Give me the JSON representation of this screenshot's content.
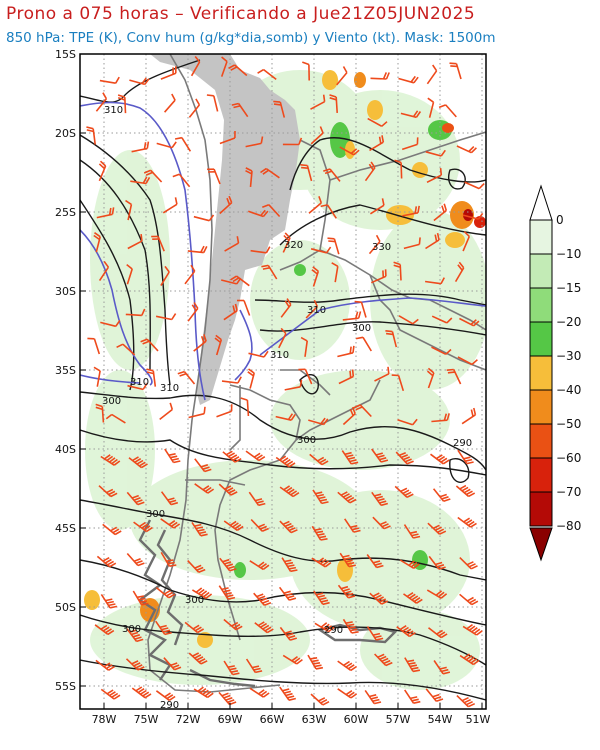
{
  "title": "Prono a 075 horas – Verificando a Jue21Z05JUN2025",
  "subtitle": "850 hPa: TPE (K), Conv hum (g/kg*dia,somb) y Viento (kt). Mask: 1500m",
  "axes": {
    "lat_labels": [
      "15S",
      "20S",
      "25S",
      "30S",
      "35S",
      "40S",
      "45S",
      "50S",
      "55S"
    ],
    "lon_labels": [
      "78W",
      "75W",
      "72W",
      "69W",
      "66W",
      "63W",
      "60W",
      "57W",
      "54W",
      "51W"
    ]
  },
  "contour_labels": {
    "black": [
      "310",
      "320",
      "330",
      "310",
      "300",
      "310",
      "300",
      "300",
      "290",
      "300",
      "300",
      "300",
      "290",
      "290"
    ],
    "blue": [
      "310",
      "310"
    ]
  },
  "colorbar": {
    "labels": [
      "0",
      "−10",
      "−15",
      "−20",
      "−30",
      "−40",
      "−50",
      "−60",
      "−70",
      "−80"
    ],
    "colors": [
      "#e6f5e1",
      "#c3ebb6",
      "#8fdc7a",
      "#55c746",
      "#f6be3a",
      "#f08c1c",
      "#ea5114",
      "#d8220c",
      "#b40a06",
      "#8a0000"
    ]
  },
  "colors": {
    "title": "#c81e1e",
    "subtitle": "#1a7fc0",
    "terrain_mask": "#c4c4c4",
    "wind_barbs": "#ee4a1c",
    "contour_black": "#1a1a1a",
    "contour_blue": "#5a5ac8",
    "coastline": "#7a7a7a"
  }
}
